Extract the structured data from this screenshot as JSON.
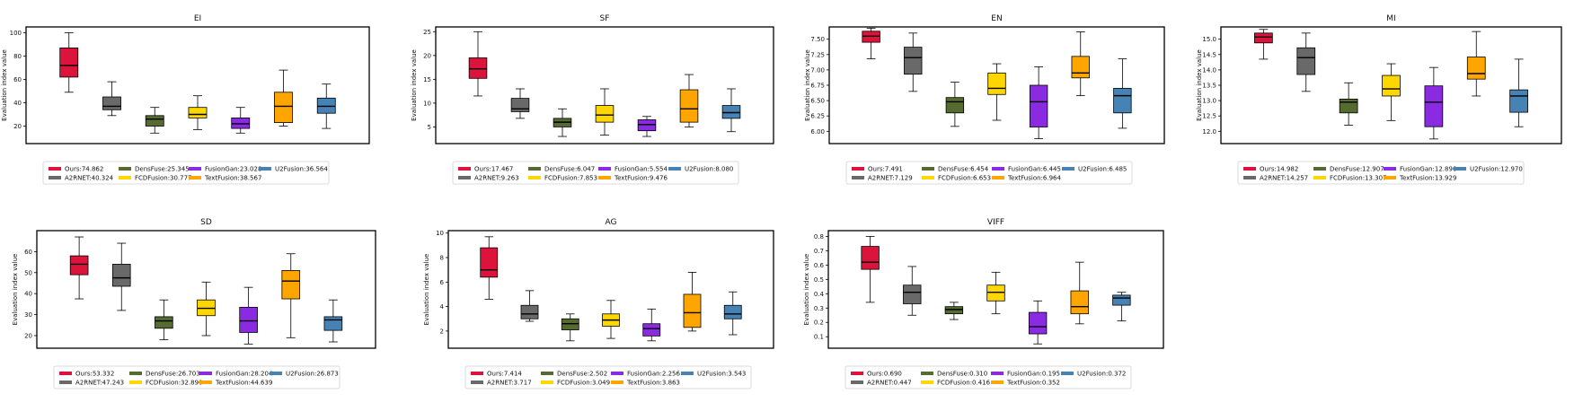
{
  "chart_data": [
    {
      "type": "box",
      "title": "EI",
      "ylabel": "Evaluation index value",
      "ylim": [
        5,
        105
      ],
      "yticks": [
        20,
        40,
        60,
        80,
        100
      ],
      "legend_position": "below",
      "series": [
        {
          "name": "Ours",
          "mean": "74.862",
          "color": "#DC143C",
          "whislo": 49,
          "q1": 62,
          "med": 72,
          "q3": 87,
          "whishi": 100
        },
        {
          "name": "A2RNET",
          "mean": "40.324",
          "color": "#696969",
          "whislo": 29,
          "q1": 34,
          "med": 37,
          "q3": 45,
          "whishi": 58
        },
        {
          "name": "DensFuse",
          "mean": "25.345",
          "color": "#556B2F",
          "whislo": 14,
          "q1": 20,
          "med": 26,
          "q3": 29,
          "whishi": 36
        },
        {
          "name": "FCDFusion",
          "mean": "30.777",
          "color": "#FFD700",
          "whislo": 17,
          "q1": 27,
          "med": 30,
          "q3": 36,
          "whishi": 46
        },
        {
          "name": "FusionGan",
          "mean": "23.028",
          "color": "#8A2BE2",
          "whislo": 14,
          "q1": 18,
          "med": 22,
          "q3": 27,
          "whishi": 36
        },
        {
          "name": "TextFusion",
          "mean": "38.567",
          "color": "#FFA500",
          "whislo": 20,
          "q1": 23,
          "med": 37,
          "q3": 49,
          "whishi": 68
        },
        {
          "name": "U2Fusion",
          "mean": "36.564",
          "color": "#4682B4",
          "whislo": 18,
          "q1": 31,
          "med": 37,
          "q3": 44,
          "whishi": 56
        }
      ]
    },
    {
      "type": "box",
      "title": "SF",
      "ylabel": "Evaluation index value",
      "ylim": [
        1.5,
        26
      ],
      "yticks": [
        5,
        10,
        15,
        20,
        25
      ],
      "legend_position": "below",
      "series": [
        {
          "name": "Ours",
          "mean": "17.467",
          "color": "#DC143C",
          "whislo": 11.5,
          "q1": 15.2,
          "med": 17.2,
          "q3": 19.5,
          "whishi": 25.0
        },
        {
          "name": "A2RNET",
          "mean": "9.263",
          "color": "#696969",
          "whislo": 6.8,
          "q1": 8.2,
          "med": 8.8,
          "q3": 11.0,
          "whishi": 13.0
        },
        {
          "name": "DensFuse",
          "mean": "6.047",
          "color": "#556B2F",
          "whislo": 3.0,
          "q1": 5.0,
          "med": 6.0,
          "q3": 6.8,
          "whishi": 8.8
        },
        {
          "name": "FCDFusion",
          "mean": "7.853",
          "color": "#FFD700",
          "whislo": 3.3,
          "q1": 6.0,
          "med": 7.5,
          "q3": 9.5,
          "whishi": 13.0
        },
        {
          "name": "FusionGan",
          "mean": "5.554",
          "color": "#8A2BE2",
          "whislo": 3.0,
          "q1": 4.2,
          "med": 5.5,
          "q3": 6.5,
          "whishi": 7.2
        },
        {
          "name": "TextFusion",
          "mean": "9.476",
          "color": "#FFA500",
          "whislo": 5.0,
          "q1": 6.0,
          "med": 8.8,
          "q3": 12.8,
          "whishi": 16.0
        },
        {
          "name": "U2Fusion",
          "mean": "8.080",
          "color": "#4682B4",
          "whislo": 4.0,
          "q1": 6.8,
          "med": 8.0,
          "q3": 9.5,
          "whishi": 13.0
        }
      ]
    },
    {
      "type": "box",
      "title": "EN",
      "ylabel": "Evaluation index value",
      "ylim": [
        5.8,
        7.7
      ],
      "yticks": [
        6.0,
        6.25,
        6.5,
        6.75,
        7.0,
        7.25,
        7.5
      ],
      "ytick_labels": [
        "6.00",
        "6.25",
        "6.50",
        "6.75",
        "7.00",
        "7.25",
        "7.50"
      ],
      "legend_position": "below",
      "series": [
        {
          "name": "Ours",
          "mean": "7.491",
          "color": "#DC143C",
          "whislo": 7.18,
          "q1": 7.45,
          "med": 7.55,
          "q3": 7.63,
          "whishi": 7.68
        },
        {
          "name": "A2RNET",
          "mean": "7.129",
          "color": "#696969",
          "whislo": 6.65,
          "q1": 6.93,
          "med": 7.2,
          "q3": 7.37,
          "whishi": 7.6
        },
        {
          "name": "DensFuse",
          "mean": "6.454",
          "color": "#556B2F",
          "whislo": 6.08,
          "q1": 6.3,
          "med": 6.48,
          "q3": 6.55,
          "whishi": 6.8
        },
        {
          "name": "FCDFusion",
          "mean": "6.653",
          "color": "#FFD700",
          "whislo": 6.18,
          "q1": 6.6,
          "med": 6.7,
          "q3": 6.95,
          "whishi": 7.1
        },
        {
          "name": "FusionGan",
          "mean": "6.445",
          "color": "#8A2BE2",
          "whislo": 5.88,
          "q1": 6.07,
          "med": 6.48,
          "q3": 6.75,
          "whishi": 7.05
        },
        {
          "name": "TextFusion",
          "mean": "6.964",
          "color": "#FFA500",
          "whislo": 6.58,
          "q1": 6.87,
          "med": 6.95,
          "q3": 7.22,
          "whishi": 7.62
        },
        {
          "name": "U2Fusion",
          "mean": "6.485",
          "color": "#4682B4",
          "whislo": 6.05,
          "q1": 6.3,
          "med": 6.58,
          "q3": 6.7,
          "whishi": 7.18
        }
      ]
    },
    {
      "type": "box",
      "title": "MI",
      "ylabel": "Evaluation index value",
      "ylim": [
        11.6,
        15.4
      ],
      "yticks": [
        12.0,
        12.5,
        13.0,
        13.5,
        14.0,
        14.5,
        15.0
      ],
      "ytick_labels": [
        "12.0",
        "12.5",
        "13.0",
        "13.5",
        "14.0",
        "14.5",
        "15.0"
      ],
      "legend_position": "below",
      "series": [
        {
          "name": "Ours",
          "mean": "14.982",
          "color": "#DC143C",
          "whislo": 14.35,
          "q1": 14.88,
          "med": 15.07,
          "q3": 15.2,
          "whishi": 15.32
        },
        {
          "name": "A2RNET",
          "mean": "14.257",
          "color": "#696969",
          "whislo": 13.3,
          "q1": 13.85,
          "med": 14.4,
          "q3": 14.72,
          "whishi": 15.2
        },
        {
          "name": "DensFuse",
          "mean": "12.907",
          "color": "#556B2F",
          "whislo": 12.2,
          "q1": 12.6,
          "med": 12.95,
          "q3": 13.05,
          "whishi": 13.58
        },
        {
          "name": "FCDFusion",
          "mean": "13.307",
          "color": "#FFD700",
          "whislo": 12.35,
          "q1": 13.15,
          "med": 13.38,
          "q3": 13.82,
          "whishi": 14.2
        },
        {
          "name": "FusionGan",
          "mean": "12.890",
          "color": "#8A2BE2",
          "whislo": 11.75,
          "q1": 12.15,
          "med": 12.95,
          "q3": 13.48,
          "whishi": 14.08
        },
        {
          "name": "TextFusion",
          "mean": "13.929",
          "color": "#FFA500",
          "whislo": 13.15,
          "q1": 13.7,
          "med": 13.88,
          "q3": 14.42,
          "whishi": 15.25
        },
        {
          "name": "U2Fusion",
          "mean": "12.970",
          "color": "#4682B4",
          "whislo": 12.15,
          "q1": 12.62,
          "med": 13.15,
          "q3": 13.35,
          "whishi": 14.35
        }
      ]
    },
    {
      "type": "box",
      "title": "SD",
      "ylabel": "Evaluation index value",
      "ylim": [
        14,
        70
      ],
      "yticks": [
        20,
        30,
        40,
        50,
        60
      ],
      "legend_position": "below",
      "series": [
        {
          "name": "Ours",
          "mean": "53.332",
          "color": "#DC143C",
          "whislo": 37.5,
          "q1": 49.0,
          "med": 54.0,
          "q3": 58.0,
          "whishi": 67.0
        },
        {
          "name": "A2RNET",
          "mean": "47.243",
          "color": "#696969",
          "whislo": 32.0,
          "q1": 43.5,
          "med": 47.5,
          "q3": 54.0,
          "whishi": 64.0
        },
        {
          "name": "DensFuse",
          "mean": "26.703",
          "color": "#556B2F",
          "whislo": 18.0,
          "q1": 23.5,
          "med": 27.0,
          "q3": 29.0,
          "whishi": 37.0
        },
        {
          "name": "FCDFusion",
          "mean": "32.890",
          "color": "#FFD700",
          "whislo": 20.0,
          "q1": 29.5,
          "med": 33.0,
          "q3": 37.0,
          "whishi": 45.5
        },
        {
          "name": "FusionGan",
          "mean": "28.204",
          "color": "#8A2BE2",
          "whislo": 16.0,
          "q1": 21.5,
          "med": 27.0,
          "q3": 33.5,
          "whishi": 43.0
        },
        {
          "name": "TextFusion",
          "mean": "44.639",
          "color": "#FFA500",
          "whislo": 19.0,
          "q1": 37.5,
          "med": 46.0,
          "q3": 51.0,
          "whishi": 59.0
        },
        {
          "name": "U2Fusion",
          "mean": "26.873",
          "color": "#4682B4",
          "whislo": 17.0,
          "q1": 22.5,
          "med": 27.5,
          "q3": 29.0,
          "whishi": 37.0
        }
      ]
    },
    {
      "type": "box",
      "title": "AG",
      "ylabel": "Evaluation index value",
      "ylim": [
        0.6,
        10.2
      ],
      "yticks": [
        2,
        4,
        6,
        8,
        10
      ],
      "legend_position": "below",
      "series": [
        {
          "name": "Ours",
          "mean": "7.414",
          "color": "#DC143C",
          "whislo": 4.6,
          "q1": 6.4,
          "med": 7.0,
          "q3": 8.8,
          "whishi": 9.7
        },
        {
          "name": "A2RNET",
          "mean": "3.717",
          "color": "#696969",
          "whislo": 2.8,
          "q1": 3.0,
          "med": 3.4,
          "q3": 4.1,
          "whishi": 5.3
        },
        {
          "name": "DensFuse",
          "mean": "2.502",
          "color": "#556B2F",
          "whislo": 1.2,
          "q1": 2.1,
          "med": 2.6,
          "q3": 3.0,
          "whishi": 3.4
        },
        {
          "name": "FCDFusion",
          "mean": "3.049",
          "color": "#FFD700",
          "whislo": 1.4,
          "q1": 2.4,
          "med": 2.9,
          "q3": 3.4,
          "whishi": 4.5
        },
        {
          "name": "FusionGan",
          "mean": "2.256",
          "color": "#8A2BE2",
          "whislo": 1.2,
          "q1": 1.6,
          "med": 2.2,
          "q3": 2.6,
          "whishi": 3.8
        },
        {
          "name": "TextFusion",
          "mean": "3.863",
          "color": "#FFA500",
          "whislo": 2.0,
          "q1": 2.3,
          "med": 3.5,
          "q3": 5.0,
          "whishi": 6.8
        },
        {
          "name": "U2Fusion",
          "mean": "3.543",
          "color": "#4682B4",
          "whislo": 1.7,
          "q1": 3.0,
          "med": 3.4,
          "q3": 4.1,
          "whishi": 5.2
        }
      ]
    },
    {
      "type": "box",
      "title": "VIFF",
      "ylabel": "Evaluation index value",
      "ylim": [
        0.02,
        0.84
      ],
      "yticks": [
        0.1,
        0.2,
        0.3,
        0.4,
        0.5,
        0.6,
        0.7,
        0.8
      ],
      "ytick_labels": [
        "0.1",
        "0.2",
        "0.3",
        "0.4",
        "0.5",
        "0.6",
        "0.7",
        "0.8"
      ],
      "legend_position": "below",
      "series": [
        {
          "name": "Ours",
          "mean": "0.690",
          "color": "#DC143C",
          "whislo": 0.34,
          "q1": 0.57,
          "med": 0.62,
          "q3": 0.73,
          "whishi": 0.8
        },
        {
          "name": "A2RNET",
          "mean": "0.447",
          "color": "#696969",
          "whislo": 0.25,
          "q1": 0.33,
          "med": 0.41,
          "q3": 0.46,
          "whishi": 0.59
        },
        {
          "name": "DensFuse",
          "mean": "0.310",
          "color": "#556B2F",
          "whislo": 0.22,
          "q1": 0.26,
          "med": 0.29,
          "q3": 0.31,
          "whishi": 0.34
        },
        {
          "name": "FCDFusion",
          "mean": "0.416",
          "color": "#FFD700",
          "whislo": 0.26,
          "q1": 0.35,
          "med": 0.41,
          "q3": 0.46,
          "whishi": 0.55
        },
        {
          "name": "FusionGan",
          "mean": "0.195",
          "color": "#8A2BE2",
          "whislo": 0.05,
          "q1": 0.12,
          "med": 0.17,
          "q3": 0.27,
          "whishi": 0.35
        },
        {
          "name": "TextFusion",
          "mean": "0.352",
          "color": "#FFA500",
          "whislo": 0.19,
          "q1": 0.26,
          "med": 0.31,
          "q3": 0.42,
          "whishi": 0.62
        },
        {
          "name": "U2Fusion",
          "mean": "0.372",
          "color": "#4682B4",
          "whislo": 0.21,
          "q1": 0.32,
          "med": 0.37,
          "q3": 0.39,
          "whishi": 0.41
        }
      ]
    }
  ]
}
